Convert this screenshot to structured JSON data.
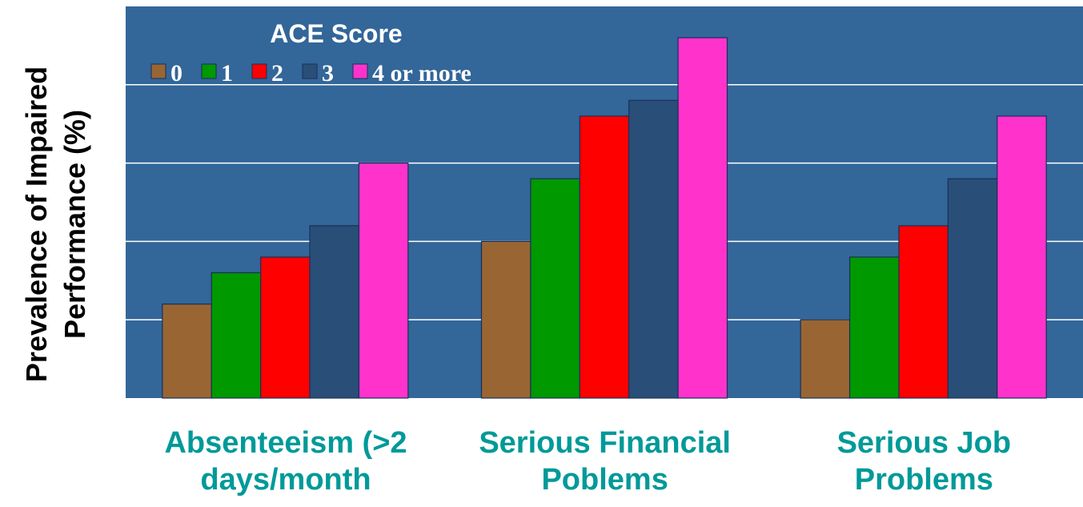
{
  "chart_data": {
    "type": "bar",
    "y_label": [
      "Prevalence of  Impaired",
      "Performance (%)"
    ],
    "legend_title": "ACE Score",
    "legend": "top-left",
    "categories": [
      "Absenteeism (>2 days/month",
      "Serious Financial Poblems",
      "Serious Job Problems"
    ],
    "series": [
      {
        "name": "0",
        "color": "#996633",
        "values": [
          6,
          10,
          5
        ]
      },
      {
        "name": "1",
        "color": "#009900",
        "values": [
          8,
          14,
          9
        ]
      },
      {
        "name": "2",
        "color": "#ff0000",
        "values": [
          9,
          18,
          11
        ]
      },
      {
        "name": "3",
        "color": "#294f78",
        "values": [
          11,
          19,
          14
        ]
      },
      {
        "name": "4 or more",
        "color": "#ff33cc",
        "values": [
          15,
          23,
          18
        ]
      }
    ],
    "ylim": [
      0,
      25
    ],
    "yticks": [
      5,
      10,
      15,
      20
    ],
    "grid": true
  }
}
